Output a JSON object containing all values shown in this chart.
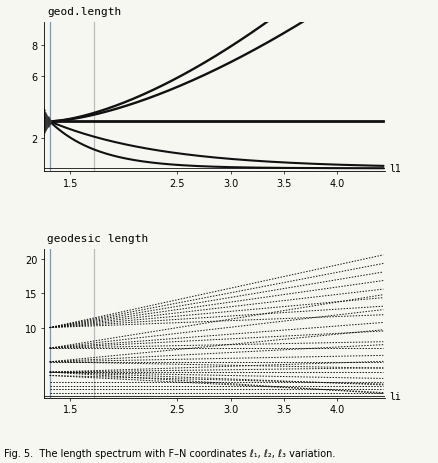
{
  "top_plot": {
    "title": "geod.length",
    "xlim": [
      1.25,
      4.45
    ],
    "ylim": [
      -0.2,
      9.5
    ],
    "xticks": [
      1.5,
      2.5,
      3.0,
      3.5,
      4.0
    ],
    "yticks": [
      2,
      6,
      8
    ],
    "xlabel": "l1",
    "blue_vline": 1.305,
    "gray_vline": 1.72,
    "x_start": 1.305,
    "x_end": 4.43,
    "converge_x": 1.305,
    "converge_y": 3.05
  },
  "bottom_plot": {
    "title": "geodesic length",
    "xlim": [
      1.25,
      4.45
    ],
    "ylim": [
      -0.3,
      21.5
    ],
    "xticks": [
      1.5,
      2.5,
      3.0,
      3.5,
      4.0
    ],
    "yticks": [
      10,
      15,
      20
    ],
    "xlabel": "li",
    "blue_vline": 1.305,
    "gray_vline": 1.72,
    "x_start": 1.305,
    "x_end": 4.43,
    "converge_x": 1.305
  },
  "background_color": "#f7f7f2",
  "line_color": "#111111",
  "dot_color": "#333333",
  "blue_line_color": "#7799bb",
  "gray_line_color": "#bbbbbb"
}
